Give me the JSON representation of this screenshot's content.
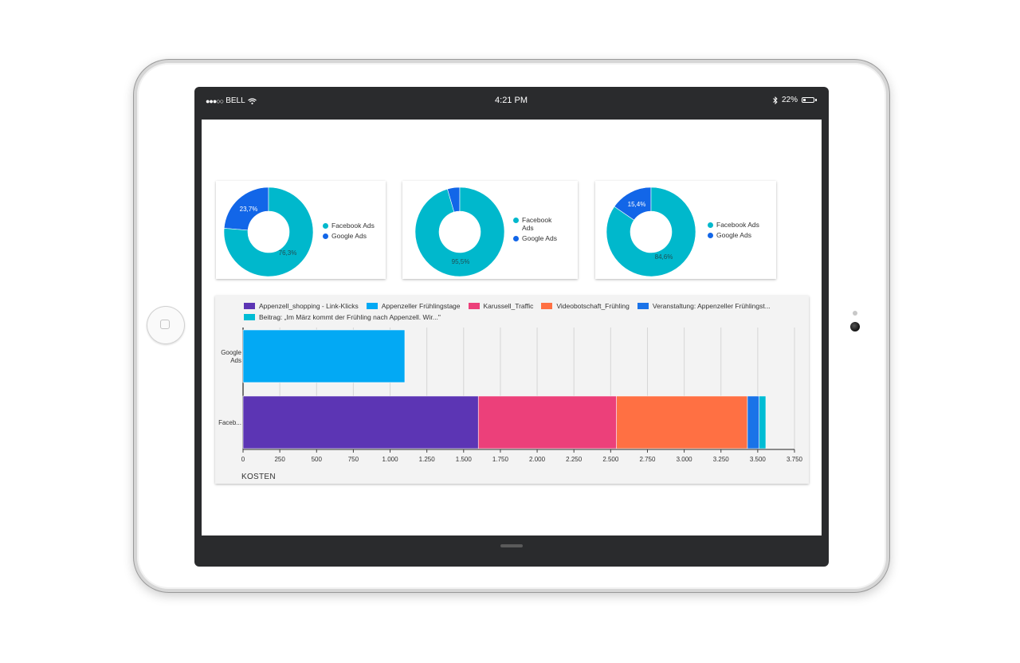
{
  "status_bar": {
    "carrier": "BELL",
    "time": "4:21 PM",
    "battery": "22%"
  },
  "colors": {
    "facebook": "#00b8cc",
    "google": "#1266e8"
  },
  "donuts": [
    {
      "legend": [
        "Facebook Ads",
        "Google Ads"
      ],
      "facebook_pct": 76.3,
      "google_pct": 23.7,
      "facebook_label": "76,3%",
      "google_label": "23,7%"
    },
    {
      "legend": [
        "Facebook Ads",
        "Google Ads"
      ],
      "facebook_pct": 95.5,
      "google_pct": 4.5,
      "facebook_label": "95,5%",
      "google_label": ""
    },
    {
      "legend": [
        "Facebook Ads",
        "Google Ads"
      ],
      "facebook_pct": 84.6,
      "google_pct": 15.4,
      "facebook_label": "84,6%",
      "google_label": "15,4%"
    }
  ],
  "bar_legend": [
    {
      "label": "Appenzell_shopping - Link-Klicks",
      "color": "#5c35b4"
    },
    {
      "label": "Appenzeller Frühlingstage",
      "color": "#03a9f4"
    },
    {
      "label": "Karussell_Traffic",
      "color": "#ec407a"
    },
    {
      "label": "Videobotschaft_Frühling",
      "color": "#ff7043"
    },
    {
      "label": "Veranstaltung: Appenzeller Frühlingst...",
      "color": "#1a73e8"
    },
    {
      "label": "Beitrag: „Im März kommt der Frühling nach Appenzell. Wir...\"",
      "color": "#00bcd4"
    }
  ],
  "chart_data": {
    "type": "bar",
    "orientation": "horizontal",
    "stacked": true,
    "categories": [
      "Google Ads",
      "Faceb..."
    ],
    "series": [
      {
        "name": "Appenzell_shopping - Link-Klicks",
        "values": [
          0,
          1600
        ]
      },
      {
        "name": "Appenzeller Frühlingstage",
        "values": [
          1100,
          0
        ]
      },
      {
        "name": "Karussell_Traffic",
        "values": [
          0,
          940
        ]
      },
      {
        "name": "Videobotschaft_Frühling",
        "values": [
          0,
          890
        ]
      },
      {
        "name": "Veranstaltung: Appenzeller Frühlingst...",
        "values": [
          0,
          80
        ]
      },
      {
        "name": "Beitrag: „Im März kommt der Frühling nach Appenzell. Wir...\"",
        "values": [
          0,
          45
        ]
      }
    ],
    "xlim": [
      0,
      3750
    ],
    "xticks": [
      "0",
      "250",
      "500",
      "750",
      "1.000",
      "1.250",
      "1.500",
      "1.750",
      "2.000",
      "2.250",
      "2.500",
      "2.750",
      "3.000",
      "3.250",
      "3.500",
      "3.750"
    ],
    "xlabel": "KOSTEN",
    "ylabel": "",
    "grid": true,
    "legend_position": "top"
  }
}
